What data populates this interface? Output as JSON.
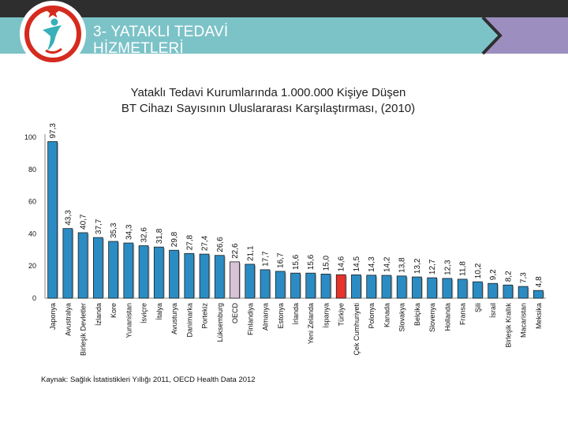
{
  "header": {
    "section_title_line1": "3- YATAKLI TEDAVİ",
    "section_title_line2": "HİZMETLERİ"
  },
  "chart_title": {
    "line1": "Yataklı Tedavi Kurumlarında 1.000.000 Kişiye Düşen",
    "line2": "BT Cihazı Sayısının Uluslararası Karşılaştırması, (2010)"
  },
  "source": "Kaynak: Sağlık İstatistikleri Yıllığı 2011, OECD Health Data 2012",
  "colors": {
    "bar_default": "#2b8cc4",
    "bar_oecd": "#d7c2d6",
    "bar_turkey": "#e8322c",
    "header_teal": "#7cc3c8",
    "header_dark": "#2e2e2e",
    "header_purple": "#9c8fbf",
    "logo_red": "#d52b1e",
    "logo_teal": "#38b0b8"
  },
  "chart_data": {
    "type": "bar",
    "title": "Yataklı Tedavi Kurumlarında 1.000.000 Kişiye Düşen BT Cihazı Sayısının Uluslararası Karşılaştırması, (2010)",
    "xlabel": "",
    "ylabel": "",
    "ylim": [
      0,
      100
    ],
    "yticks": [
      0,
      20,
      40,
      60,
      80,
      100
    ],
    "grid": false,
    "categories": [
      "Japonya",
      "Avustralya",
      "Birleşik Devletler",
      "İzlanda",
      "Kore",
      "Yunanistan",
      "İsviçre",
      "İtalya",
      "Avusturya",
      "Danimarka",
      "Portekiz",
      "Lüksemburg",
      "OECD",
      "Finlandiya",
      "Almanya",
      "Estonya",
      "İrlanda",
      "Yeni Zelanda",
      "İspanya",
      "Türkiye",
      "Çek Cumhuriyeti",
      "Polonya",
      "Kanada",
      "Slovakya",
      "Belçika",
      "Slovenya",
      "Hollanda",
      "Fransa",
      "Şili",
      "İsrail",
      "Birleşik Krallık",
      "Macaristan",
      "Meksika"
    ],
    "values": [
      97.3,
      43.3,
      40.7,
      37.7,
      35.3,
      34.3,
      32.6,
      31.8,
      29.8,
      27.8,
      27.4,
      26.6,
      22.6,
      21.1,
      17.7,
      16.7,
      15.6,
      15.6,
      15.0,
      14.6,
      14.5,
      14.3,
      14.2,
      13.8,
      13.2,
      12.7,
      12.3,
      11.8,
      10.2,
      9.2,
      8.2,
      7.3,
      4.8
    ],
    "value_labels": [
      "97,3",
      "43,3",
      "40,7",
      "37,7",
      "35,3",
      "34,3",
      "32,6",
      "31,8",
      "29,8",
      "27,8",
      "27,4",
      "26,6",
      "22,6",
      "21,1",
      "17,7",
      "16,7",
      "15,6",
      "15,6",
      "15,0",
      "14,6",
      "14,5",
      "14,3",
      "14,2",
      "13,8",
      "13,2",
      "12,7",
      "12,3",
      "11,8",
      "10,2",
      "9,2",
      "8,2",
      "7,3",
      "4,8"
    ],
    "highlight": {
      "OECD": "bar_oecd",
      "Türkiye": "bar_turkey"
    }
  }
}
